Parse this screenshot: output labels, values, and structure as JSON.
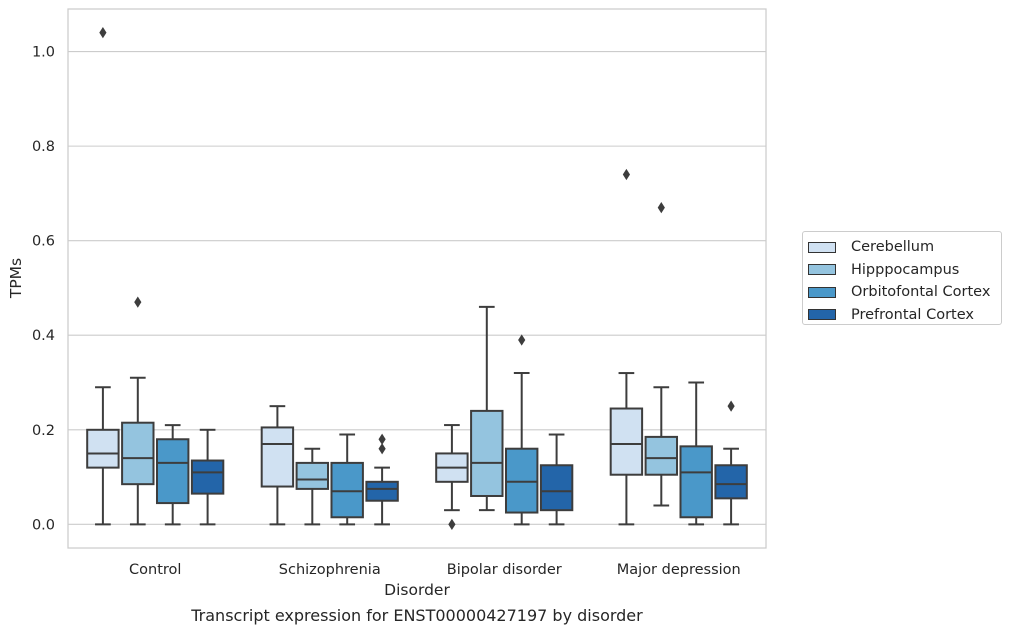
{
  "chart_data": {
    "type": "box",
    "xlabel": "Disorder",
    "ylabel": "TPMs",
    "caption": "Transcript expression for ENST00000427197 by disorder",
    "categories": [
      "Control",
      "Schizophrenia",
      "Bipolar disorder",
      "Major depression"
    ],
    "ylim": [
      -0.05,
      1.09
    ],
    "yticks": [
      "0.0",
      "0.2",
      "0.4",
      "0.6",
      "0.8",
      "1.0"
    ],
    "grid": "horizontal",
    "legend_position": "right",
    "series": [
      {
        "name": "Cerebellum",
        "color": "#d0e1f2",
        "boxes": [
          {
            "whislo": 0.0,
            "q1": 0.12,
            "med": 0.15,
            "q3": 0.2,
            "whishi": 0.29,
            "fliers": [
              1.04
            ]
          },
          {
            "whislo": 0.0,
            "q1": 0.08,
            "med": 0.17,
            "q3": 0.205,
            "whishi": 0.25,
            "fliers": []
          },
          {
            "whislo": 0.03,
            "q1": 0.09,
            "med": 0.12,
            "q3": 0.15,
            "whishi": 0.21,
            "fliers": [
              0.0
            ]
          },
          {
            "whislo": 0.0,
            "q1": 0.105,
            "med": 0.17,
            "q3": 0.245,
            "whishi": 0.32,
            "fliers": [
              0.74
            ]
          }
        ]
      },
      {
        "name": "Hipppocampus",
        "color": "#94c4df",
        "boxes": [
          {
            "whislo": 0.0,
            "q1": 0.085,
            "med": 0.14,
            "q3": 0.215,
            "whishi": 0.31,
            "fliers": [
              0.47
            ]
          },
          {
            "whislo": 0.0,
            "q1": 0.075,
            "med": 0.095,
            "q3": 0.13,
            "whishi": 0.16,
            "fliers": []
          },
          {
            "whislo": 0.03,
            "q1": 0.06,
            "med": 0.13,
            "q3": 0.24,
            "whishi": 0.46,
            "fliers": []
          },
          {
            "whislo": 0.04,
            "q1": 0.105,
            "med": 0.14,
            "q3": 0.185,
            "whishi": 0.29,
            "fliers": [
              0.67
            ]
          }
        ]
      },
      {
        "name": "Orbitofontal Cortex",
        "color": "#4a98c9",
        "boxes": [
          {
            "whislo": 0.0,
            "q1": 0.045,
            "med": 0.13,
            "q3": 0.18,
            "whishi": 0.21,
            "fliers": []
          },
          {
            "whislo": 0.0,
            "q1": 0.015,
            "med": 0.07,
            "q3": 0.13,
            "whishi": 0.19,
            "fliers": []
          },
          {
            "whislo": 0.0,
            "q1": 0.025,
            "med": 0.09,
            "q3": 0.16,
            "whishi": 0.32,
            "fliers": [
              0.39
            ]
          },
          {
            "whislo": 0.0,
            "q1": 0.015,
            "med": 0.11,
            "q3": 0.165,
            "whishi": 0.3,
            "fliers": []
          }
        ]
      },
      {
        "name": "Prefrontal Cortex",
        "color": "#2365a9",
        "boxes": [
          {
            "whislo": 0.0,
            "q1": 0.065,
            "med": 0.11,
            "q3": 0.135,
            "whishi": 0.2,
            "fliers": []
          },
          {
            "whislo": 0.0,
            "q1": 0.05,
            "med": 0.075,
            "q3": 0.09,
            "whishi": 0.12,
            "fliers": [
              0.16,
              0.18
            ]
          },
          {
            "whislo": 0.0,
            "q1": 0.03,
            "med": 0.07,
            "q3": 0.125,
            "whishi": 0.19,
            "fliers": []
          },
          {
            "whislo": 0.0,
            "q1": 0.055,
            "med": 0.085,
            "q3": 0.125,
            "whishi": 0.16,
            "fliers": [
              0.25
            ]
          }
        ]
      }
    ]
  }
}
